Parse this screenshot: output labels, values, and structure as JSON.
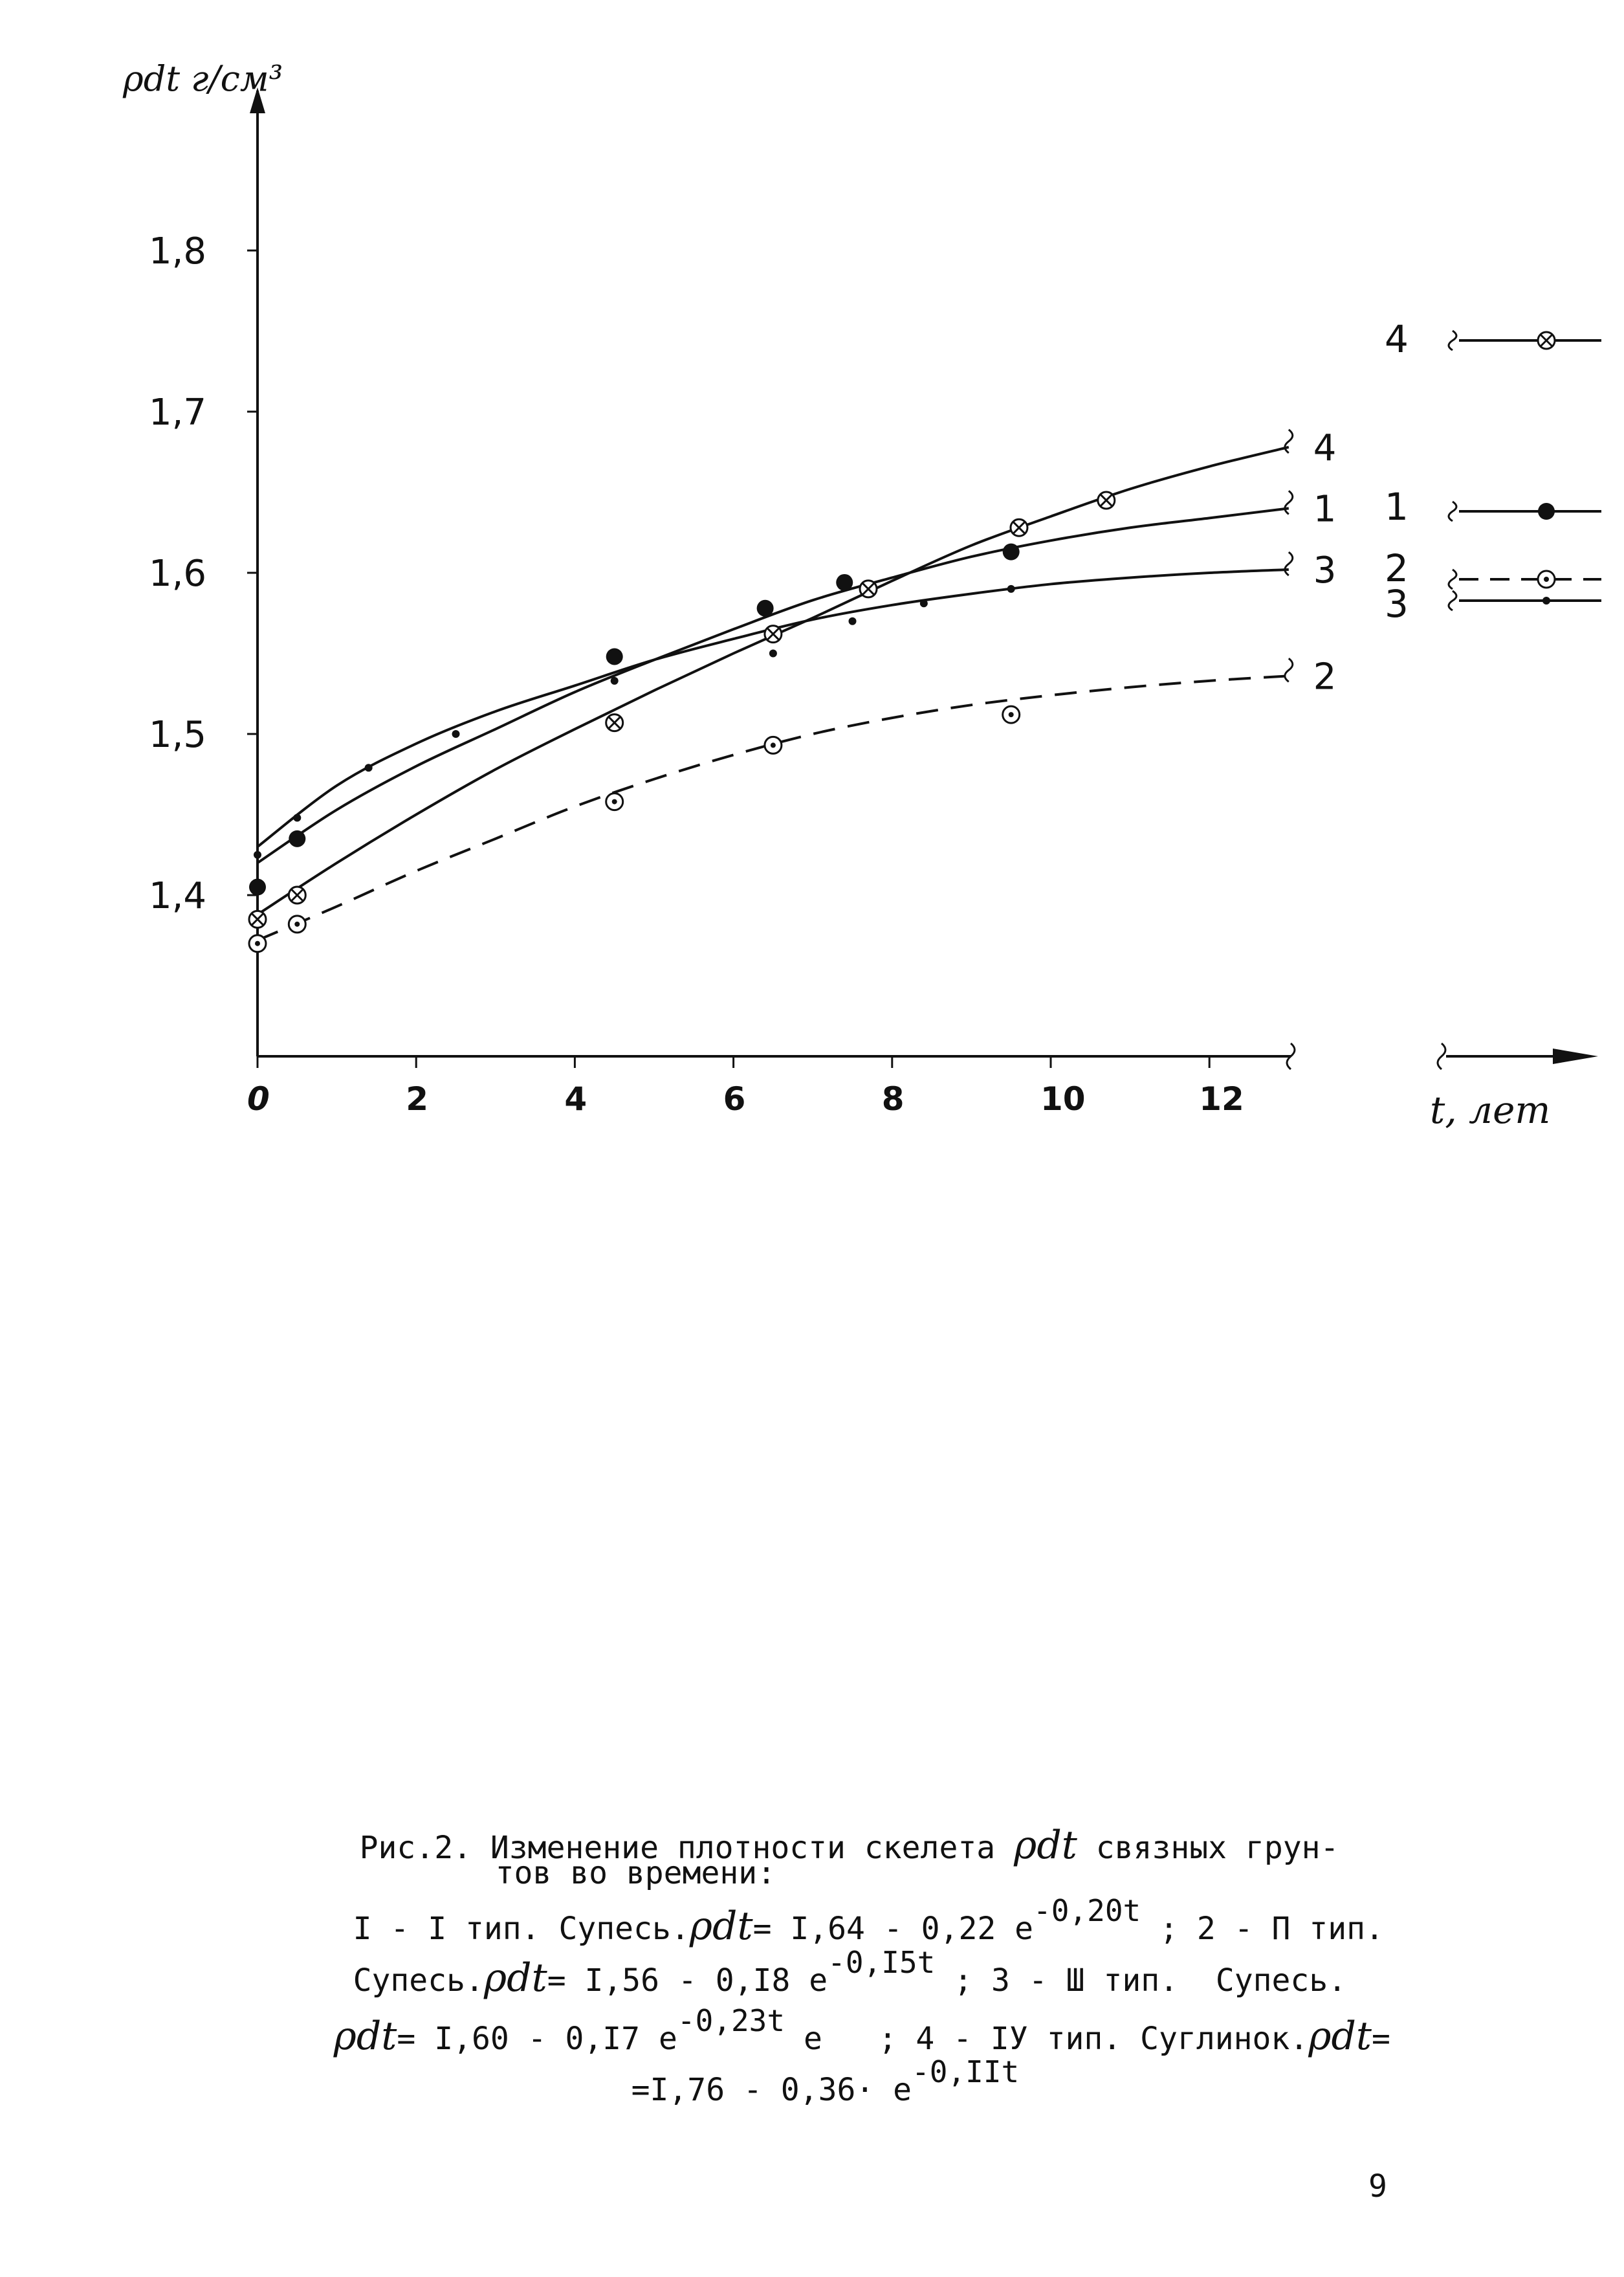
{
  "chart_data": {
    "type": "line",
    "ylabel": "ρdt г/см³",
    "xlabel": "t, лет",
    "xlim": [
      0,
      13
    ],
    "ylim": [
      1.3,
      1.9
    ],
    "x_ticks": [
      "0",
      "2",
      "4",
      "6",
      "8",
      "10",
      "12"
    ],
    "x_tick_values": [
      0,
      2,
      4,
      6,
      8,
      10,
      12
    ],
    "y_ticks": [
      "1,4",
      "1,5",
      "1,6",
      "1,7",
      "1,8"
    ],
    "y_tick_values": [
      1.4,
      1.5,
      1.6,
      1.7,
      1.8
    ],
    "grid": false,
    "legend_position": "right",
    "series": [
      {
        "name": "1",
        "marker": "filled-circle",
        "line_style": "solid",
        "points": [
          [
            0,
            1.405
          ],
          [
            0.5,
            1.435
          ],
          [
            4.5,
            1.548
          ],
          [
            6.4,
            1.578
          ],
          [
            7.4,
            1.594
          ],
          [
            9.5,
            1.613
          ]
        ],
        "curve": [
          [
            0,
            1.42
          ],
          [
            1,
            1.453
          ],
          [
            2,
            1.48
          ],
          [
            3,
            1.503
          ],
          [
            4,
            1.526
          ],
          [
            5,
            1.546
          ],
          [
            6,
            1.565
          ],
          [
            7,
            1.583
          ],
          [
            8,
            1.597
          ],
          [
            9,
            1.61
          ],
          [
            10,
            1.62
          ],
          [
            11,
            1.628
          ],
          [
            12,
            1.634
          ],
          [
            13,
            1.64
          ]
        ]
      },
      {
        "name": "2",
        "marker": "dotted-circle",
        "line_style": "dashed",
        "points": [
          [
            0,
            1.37
          ],
          [
            0.5,
            1.382
          ],
          [
            4.5,
            1.458
          ],
          [
            6.5,
            1.493
          ],
          [
            9.5,
            1.512
          ]
        ],
        "curve": [
          [
            0,
            1.372
          ],
          [
            1,
            1.393
          ],
          [
            2,
            1.415
          ],
          [
            3,
            1.435
          ],
          [
            4,
            1.455
          ],
          [
            5,
            1.472
          ],
          [
            6,
            1.487
          ],
          [
            7,
            1.5
          ],
          [
            8,
            1.51
          ],
          [
            9,
            1.518
          ],
          [
            10,
            1.524
          ],
          [
            11,
            1.529
          ],
          [
            12,
            1.533
          ],
          [
            13,
            1.536
          ]
        ]
      },
      {
        "name": "3",
        "marker": "small-dot",
        "line_style": "solid",
        "points": [
          [
            0,
            1.425
          ],
          [
            0.5,
            1.448
          ],
          [
            1.4,
            1.479
          ],
          [
            2.5,
            1.5
          ],
          [
            4.5,
            1.533
          ],
          [
            6.5,
            1.55
          ],
          [
            7.5,
            1.57
          ],
          [
            8.4,
            1.581
          ],
          [
            9.5,
            1.59
          ]
        ],
        "curve": [
          [
            0,
            1.43
          ],
          [
            1,
            1.468
          ],
          [
            2,
            1.494
          ],
          [
            3,
            1.514
          ],
          [
            4,
            1.53
          ],
          [
            5,
            1.546
          ],
          [
            6,
            1.559
          ],
          [
            7,
            1.571
          ],
          [
            8,
            1.58
          ],
          [
            9,
            1.587
          ],
          [
            10,
            1.593
          ],
          [
            11,
            1.597
          ],
          [
            12,
            1.6
          ],
          [
            13,
            1.602
          ]
        ]
      },
      {
        "name": "4",
        "marker": "crossed-circle",
        "line_style": "solid",
        "points": [
          [
            0,
            1.385
          ],
          [
            0.5,
            1.4
          ],
          [
            4.5,
            1.507
          ],
          [
            6.5,
            1.562
          ],
          [
            7.7,
            1.59
          ],
          [
            9.6,
            1.628
          ],
          [
            10.7,
            1.645
          ]
        ],
        "curve": [
          [
            0,
            1.388
          ],
          [
            1,
            1.42
          ],
          [
            2,
            1.45
          ],
          [
            3,
            1.478
          ],
          [
            4,
            1.503
          ],
          [
            5,
            1.527
          ],
          [
            6,
            1.55
          ],
          [
            7,
            1.572
          ],
          [
            8,
            1.595
          ],
          [
            9,
            1.617
          ],
          [
            10,
            1.635
          ],
          [
            11,
            1.652
          ],
          [
            12,
            1.666
          ],
          [
            13,
            1.678
          ]
        ]
      }
    ],
    "curve_labels": [
      "4",
      "1",
      "3",
      "2"
    ],
    "legend": [
      {
        "label": "4",
        "marker": "crossed-circle",
        "line_style": "solid"
      },
      {
        "label": "1",
        "marker": "filled-circle",
        "line_style": "solid"
      },
      {
        "label": "2",
        "marker": "dotted-circle",
        "line_style": "dashed"
      },
      {
        "label": "3",
        "marker": "small-dot",
        "line_style": "solid"
      }
    ]
  },
  "caption": {
    "line1_a": "Рис.2. Изменение плотности скелета ",
    "line1_rho": "ρdt",
    "line1_b": " связных грун-",
    "line2": "тов во времени:",
    "line3_a": "I - I тип. Супесь.",
    "line3_rho": "ρdt",
    "line3_b": "= I,64 - 0,22 e",
    "line3_exp": "-0,20t",
    "line3_c": " ; 2 - П тип.",
    "line4_a": "Супесь.",
    "line4_rho": "ρdt",
    "line4_b": "= I,56 - 0,I8 e",
    "line4_exp": "-0,I5t",
    "line4_c": " ; 3 - Ш тип.  Супесь.",
    "line5_rho": "ρdt",
    "line5_b": "= I,60 - 0,I7 e",
    "line5_exp": "-0,23t",
    "line5_c": " e   ; 4 - IУ тип. Суглинок.",
    "line5_rho2": "ρdt",
    "line5_d": "=",
    "line6_a": "=I,76 - 0,36· e",
    "line6_exp": "-0,IIt"
  },
  "page_number": "9"
}
